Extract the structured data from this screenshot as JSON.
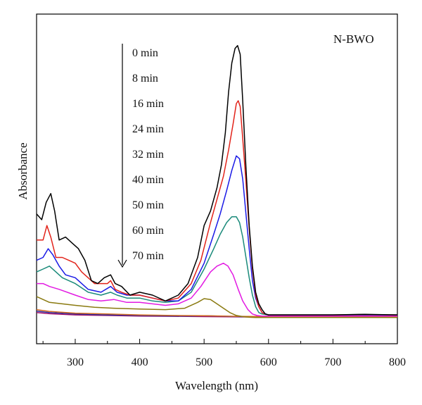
{
  "chart_data": {
    "type": "line",
    "title": "",
    "annotation": "N-BWO",
    "xlabel": "Wavelength (nm)",
    "ylabel": "Absorbance",
    "xlim": [
      240,
      800
    ],
    "ylim": [
      0,
      1.0
    ],
    "y_ticks_shown": false,
    "x_ticks": [
      "300",
      "400",
      "500",
      "600",
      "700",
      "800"
    ],
    "grid": false,
    "legend_placement": "top-center, listed top to bottom with a downward arrow",
    "legend_labels": [
      "0 min",
      "8 min",
      "16 min",
      "24 min",
      "32 min",
      "40 min",
      "50 min",
      "60 min",
      "70 min"
    ],
    "series": [
      {
        "name": "0 min",
        "color": "#000000",
        "x": [
          240,
          248,
          255,
          262,
          268,
          275,
          285,
          295,
          305,
          315,
          325,
          335,
          345,
          355,
          362,
          372,
          385,
          400,
          420,
          440,
          460,
          475,
          490,
          500,
          510,
          520,
          527,
          533,
          538,
          543,
          548,
          552,
          556,
          560,
          565,
          570,
          575,
          580,
          585,
          590,
          595,
          600,
          620,
          650,
          700,
          750,
          800
        ],
        "y": [
          0.36,
          0.34,
          0.4,
          0.43,
          0.37,
          0.27,
          0.28,
          0.26,
          0.24,
          0.2,
          0.13,
          0.12,
          0.14,
          0.15,
          0.12,
          0.11,
          0.08,
          0.09,
          0.08,
          0.06,
          0.08,
          0.12,
          0.21,
          0.32,
          0.37,
          0.45,
          0.53,
          0.64,
          0.78,
          0.88,
          0.93,
          0.94,
          0.91,
          0.75,
          0.52,
          0.32,
          0.18,
          0.09,
          0.05,
          0.03,
          0.015,
          0.012,
          0.012,
          0.012,
          0.012,
          0.014,
          0.012
        ]
      },
      {
        "name": "8 min",
        "color": "#e2231a",
        "x": [
          240,
          250,
          256,
          262,
          270,
          280,
          290,
          300,
          310,
          320,
          330,
          340,
          350,
          355,
          362,
          372,
          385,
          400,
          420,
          440,
          460,
          480,
          495,
          510,
          520,
          530,
          538,
          545,
          550,
          553,
          556,
          560,
          565,
          570,
          575,
          580,
          585,
          590,
          595,
          600,
          620,
          650,
          700,
          750,
          800
        ],
        "y": [
          0.27,
          0.27,
          0.32,
          0.28,
          0.21,
          0.21,
          0.2,
          0.19,
          0.16,
          0.14,
          0.12,
          0.12,
          0.12,
          0.13,
          0.1,
          0.09,
          0.08,
          0.08,
          0.07,
          0.06,
          0.07,
          0.12,
          0.2,
          0.33,
          0.41,
          0.49,
          0.58,
          0.67,
          0.74,
          0.75,
          0.73,
          0.62,
          0.47,
          0.31,
          0.17,
          0.08,
          0.04,
          0.02,
          0.015,
          0.012,
          0.012,
          0.012,
          0.012,
          0.013,
          0.012
        ]
      },
      {
        "name": "16 min",
        "color": "#1a1ae6",
        "x": [
          240,
          250,
          258,
          265,
          275,
          285,
          300,
          320,
          340,
          355,
          365,
          380,
          400,
          420,
          440,
          460,
          480,
          500,
          515,
          525,
          535,
          543,
          550,
          555,
          560,
          565,
          570,
          575,
          580,
          585,
          590,
          600,
          620,
          650,
          700,
          750,
          800
        ],
        "y": [
          0.2,
          0.21,
          0.24,
          0.22,
          0.18,
          0.15,
          0.14,
          0.1,
          0.09,
          0.11,
          0.09,
          0.08,
          0.08,
          0.07,
          0.06,
          0.06,
          0.1,
          0.19,
          0.29,
          0.36,
          0.44,
          0.51,
          0.56,
          0.55,
          0.48,
          0.36,
          0.24,
          0.13,
          0.07,
          0.04,
          0.02,
          0.012,
          0.012,
          0.012,
          0.012,
          0.012,
          0.012
        ]
      },
      {
        "name": "24 min",
        "color": "#1a8a7a",
        "x": [
          240,
          250,
          260,
          270,
          280,
          300,
          320,
          340,
          355,
          365,
          380,
          400,
          420,
          440,
          460,
          480,
          500,
          515,
          525,
          535,
          543,
          550,
          555,
          560,
          565,
          570,
          575,
          580,
          585,
          590,
          600,
          620,
          650,
          700,
          750,
          800
        ],
        "y": [
          0.16,
          0.17,
          0.18,
          0.16,
          0.14,
          0.12,
          0.09,
          0.08,
          0.09,
          0.08,
          0.07,
          0.07,
          0.06,
          0.055,
          0.06,
          0.09,
          0.17,
          0.24,
          0.29,
          0.33,
          0.35,
          0.35,
          0.33,
          0.28,
          0.21,
          0.14,
          0.08,
          0.04,
          0.02,
          0.015,
          0.012,
          0.012,
          0.012,
          0.012,
          0.012,
          0.012
        ]
      },
      {
        "name": "32 min",
        "color": "#e21ae2",
        "x": [
          240,
          250,
          260,
          275,
          300,
          320,
          340,
          360,
          380,
          400,
          420,
          440,
          460,
          480,
          495,
          510,
          520,
          530,
          537,
          545,
          553,
          560,
          568,
          575,
          582,
          590,
          600,
          620,
          650,
          700,
          750,
          800
        ],
        "y": [
          0.12,
          0.12,
          0.11,
          0.1,
          0.08,
          0.065,
          0.06,
          0.065,
          0.055,
          0.055,
          0.05,
          0.045,
          0.05,
          0.07,
          0.11,
          0.16,
          0.18,
          0.19,
          0.18,
          0.15,
          0.1,
          0.06,
          0.03,
          0.015,
          0.01,
          0.008,
          0.008,
          0.008,
          0.008,
          0.008,
          0.008,
          0.008
        ]
      },
      {
        "name": "40 min",
        "color": "#8a7a10",
        "x": [
          240,
          250,
          260,
          280,
          300,
          330,
          360,
          400,
          440,
          470,
          490,
          500,
          510,
          520,
          530,
          540,
          550,
          560,
          570,
          580,
          600,
          650,
          700,
          750,
          800
        ],
        "y": [
          0.075,
          0.065,
          0.055,
          0.05,
          0.045,
          0.038,
          0.035,
          0.032,
          0.03,
          0.035,
          0.055,
          0.068,
          0.065,
          0.05,
          0.035,
          0.02,
          0.01,
          0.006,
          0.004,
          0.003,
          0.003,
          0.003,
          0.003,
          0.003,
          0.003
        ]
      },
      {
        "name": "50 min",
        "color": "#d2691e",
        "x": [
          240,
          260,
          300,
          350,
          400,
          450,
          500,
          550,
          600,
          650,
          700,
          750,
          800
        ],
        "y": [
          0.03,
          0.024,
          0.018,
          0.015,
          0.012,
          0.01,
          0.009,
          0.007,
          0.006,
          0.006,
          0.006,
          0.006,
          0.006
        ]
      },
      {
        "name": "60 min",
        "color": "#2a2aa0",
        "x": [
          240,
          260,
          300,
          350,
          400,
          450,
          480,
          500,
          520,
          550,
          600,
          650,
          700,
          750,
          800
        ],
        "y": [
          0.025,
          0.02,
          0.015,
          0.012,
          0.01,
          0.008,
          0.008,
          0.009,
          0.008,
          0.006,
          0.005,
          0.005,
          0.005,
          0.005,
          0.005
        ]
      },
      {
        "name": "70 min",
        "color": "#a0106a",
        "x": [
          240,
          260,
          300,
          350,
          400,
          450,
          500,
          550,
          600,
          650,
          700,
          750,
          800
        ],
        "y": [
          0.02,
          0.016,
          0.012,
          0.01,
          0.008,
          0.007,
          0.006,
          0.005,
          0.004,
          0.004,
          0.004,
          0.004,
          0.004
        ]
      }
    ]
  }
}
